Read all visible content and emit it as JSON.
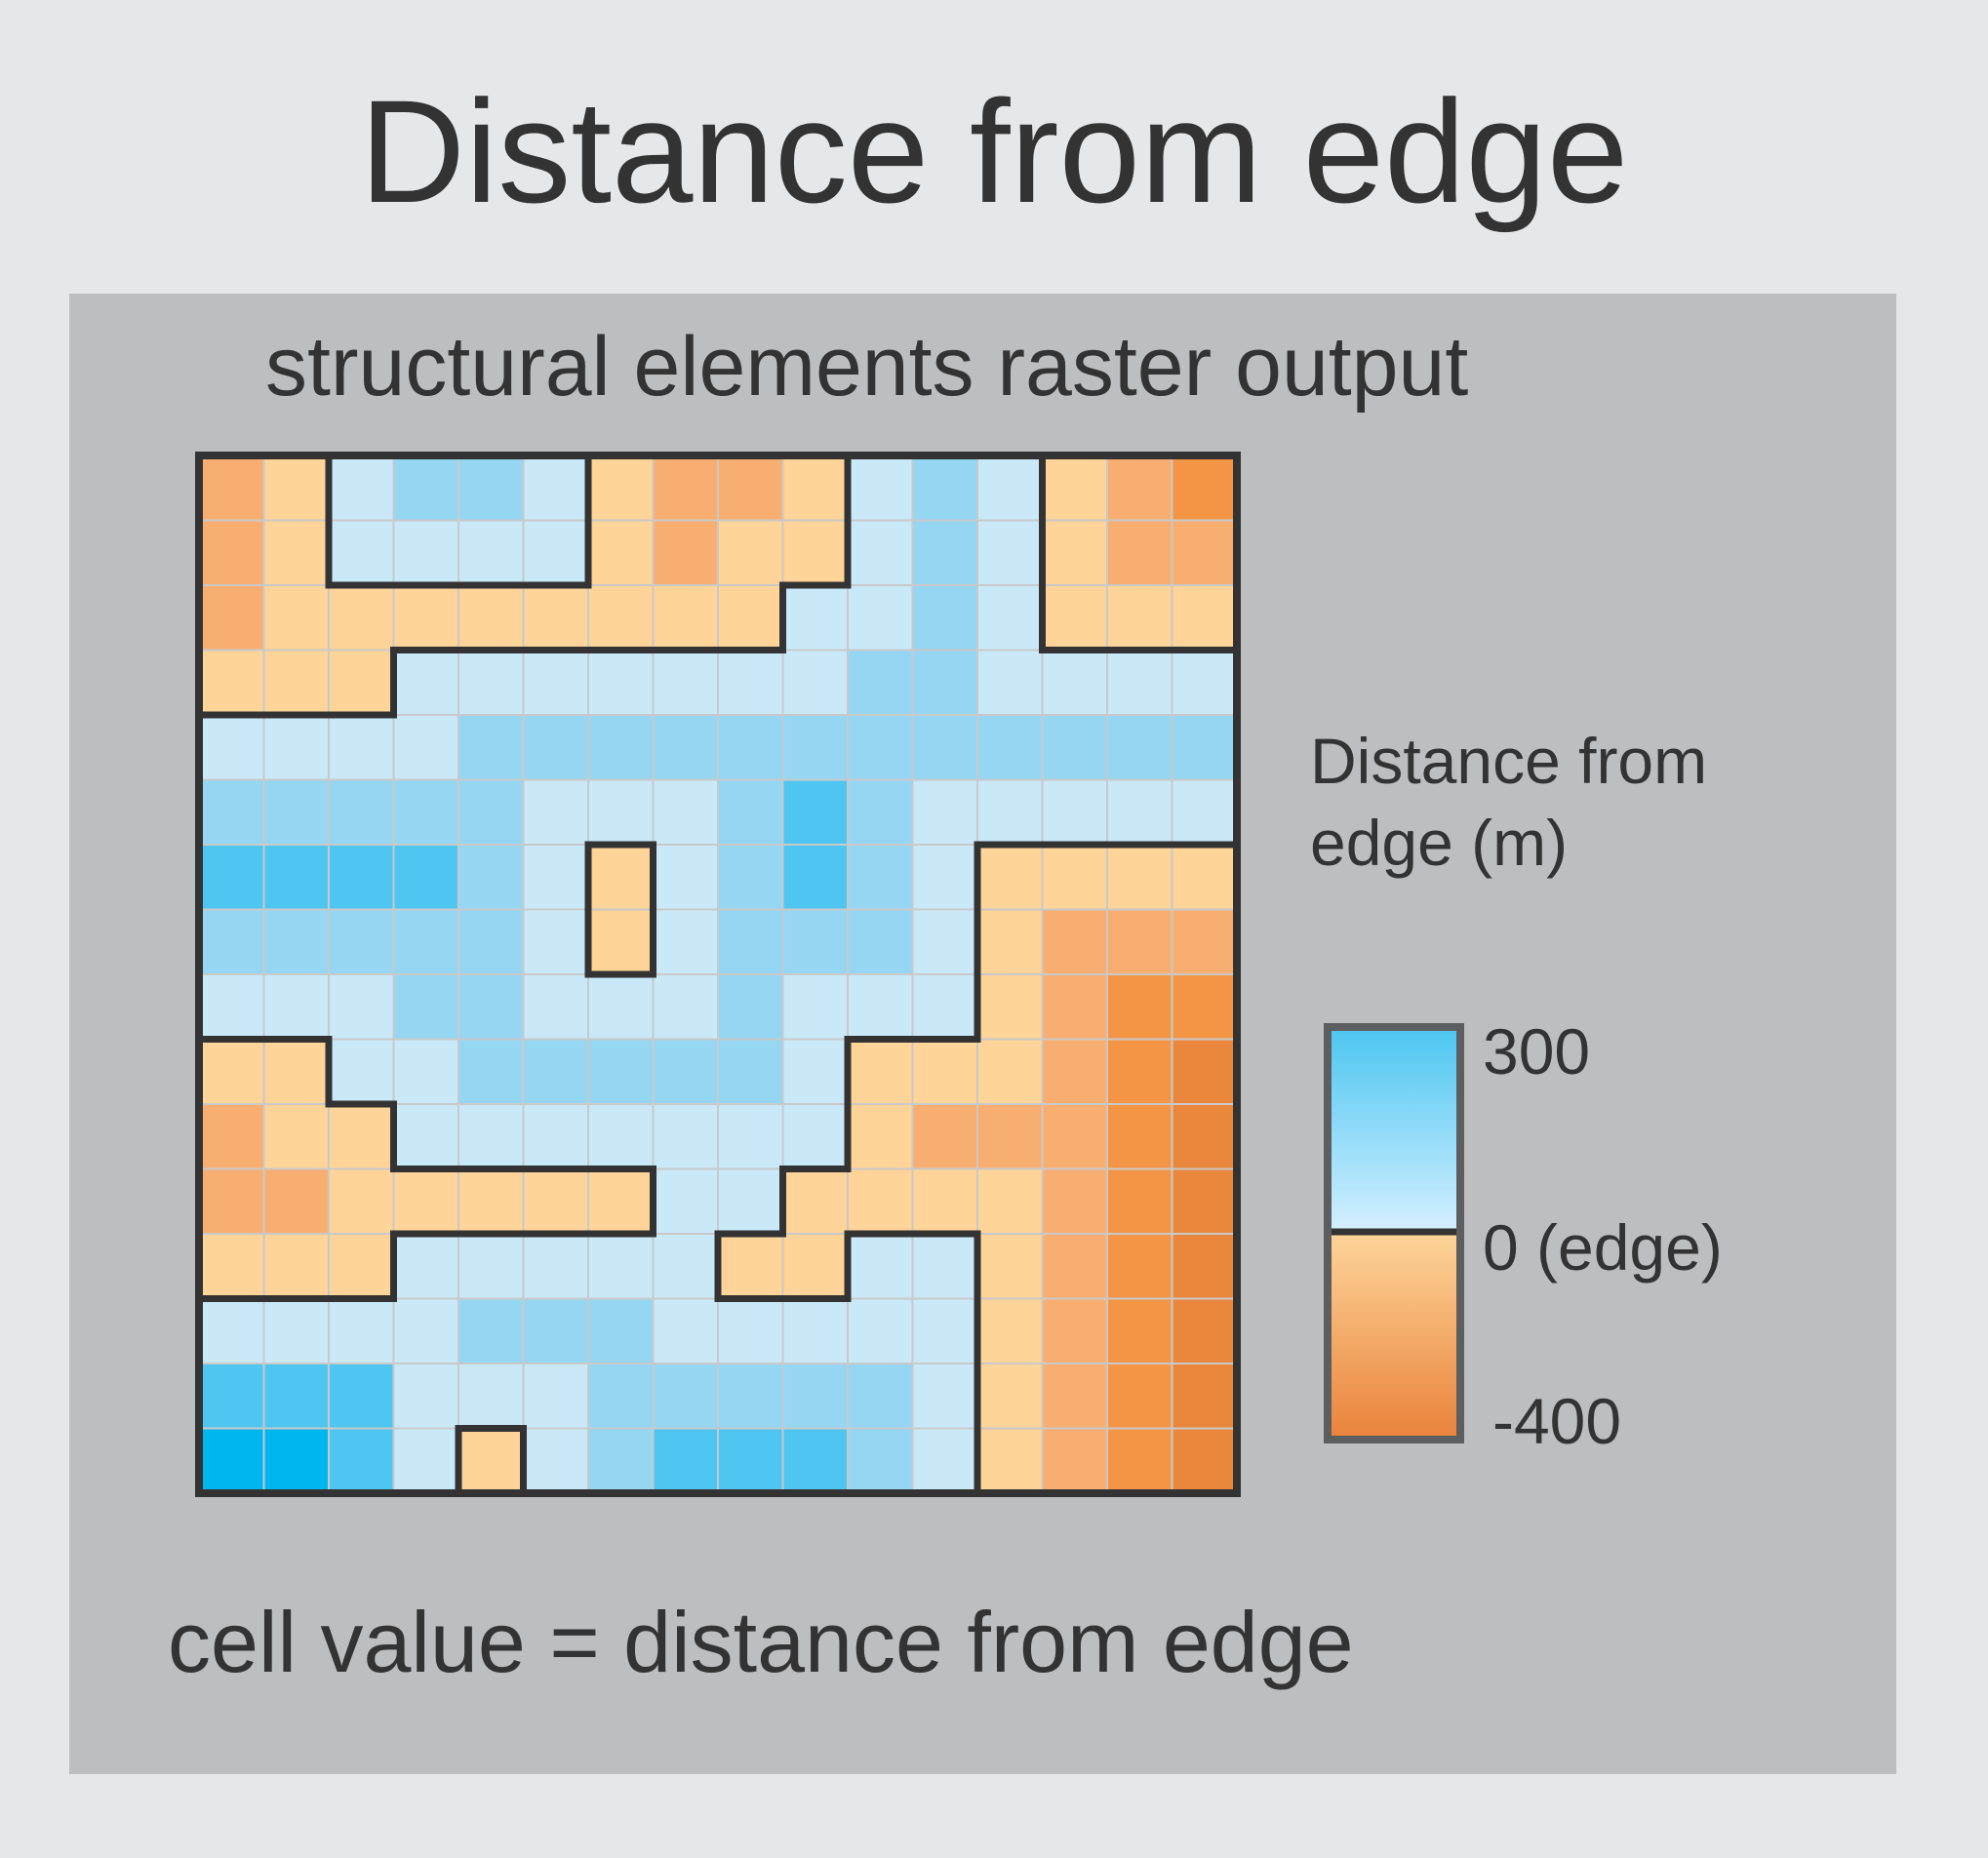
{
  "title": "Distance from edge",
  "subtitle": "structural elements raster output",
  "legend": {
    "title_line1": "Distance from",
    "title_line2": "edge (m)",
    "max_label": "300",
    "mid_label": "0 (edge)",
    "min_label": "-400",
    "colors": {
      "max": "#4cc6f1",
      "positive_low": "#d4efff",
      "negative_high": "#fed59a",
      "min": "#e9823a",
      "edge_line": "#333333",
      "frame": "#5d5e60"
    }
  },
  "footer": "cell value = distance from edge",
  "raster": {
    "rows": 16,
    "cols": 16,
    "cell_class_colors": {
      "P1": "#c9e9f9",
      "P2": "#95d7f3",
      "P3": "#4ec6f1",
      "P4": "#00b6ee",
      "N1": "#fed498",
      "N2": "#f8ae71",
      "N3": "#f49545",
      "N4": "#ea873d"
    },
    "grid": [
      [
        "N2",
        "N1",
        "P1",
        "P2",
        "P2",
        "P1",
        "N1",
        "N2",
        "N2",
        "N1",
        "P1",
        "P2",
        "P1",
        "N1",
        "N2",
        "N3"
      ],
      [
        "N2",
        "N1",
        "P1",
        "P1",
        "P1",
        "P1",
        "N1",
        "N2",
        "N1",
        "N1",
        "P1",
        "P2",
        "P1",
        "N1",
        "N2",
        "N2"
      ],
      [
        "N2",
        "N1",
        "N1",
        "N1",
        "N1",
        "N1",
        "N1",
        "N1",
        "N1",
        "P1",
        "P1",
        "P2",
        "P1",
        "N1",
        "N1",
        "N1"
      ],
      [
        "N1",
        "N1",
        "N1",
        "P1",
        "P1",
        "P1",
        "P1",
        "P1",
        "P1",
        "P1",
        "P2",
        "P2",
        "P1",
        "P1",
        "P1",
        "P1"
      ],
      [
        "P1",
        "P1",
        "P1",
        "P1",
        "P2",
        "P2",
        "P2",
        "P2",
        "P2",
        "P2",
        "P2",
        "P2",
        "P2",
        "P2",
        "P2",
        "P2"
      ],
      [
        "P2",
        "P2",
        "P2",
        "P2",
        "P2",
        "P1",
        "P1",
        "P1",
        "P2",
        "P3",
        "P2",
        "P1",
        "P1",
        "P1",
        "P1",
        "P1"
      ],
      [
        "P3",
        "P3",
        "P3",
        "P3",
        "P2",
        "P1",
        "N1",
        "P1",
        "P2",
        "P3",
        "P2",
        "P1",
        "N1",
        "N1",
        "N1",
        "N1"
      ],
      [
        "P2",
        "P2",
        "P2",
        "P2",
        "P2",
        "P1",
        "N1",
        "P1",
        "P2",
        "P2",
        "P2",
        "P1",
        "N1",
        "N2",
        "N2",
        "N2"
      ],
      [
        "P1",
        "P1",
        "P1",
        "P2",
        "P2",
        "P1",
        "P1",
        "P1",
        "P2",
        "P1",
        "P1",
        "P1",
        "N1",
        "N2",
        "N3",
        "N3"
      ],
      [
        "N1",
        "N1",
        "P1",
        "P1",
        "P2",
        "P2",
        "P2",
        "P2",
        "P2",
        "P1",
        "N1",
        "N1",
        "N1",
        "N2",
        "N3",
        "N4"
      ],
      [
        "N2",
        "N1",
        "N1",
        "P1",
        "P1",
        "P1",
        "P1",
        "P1",
        "P1",
        "P1",
        "N1",
        "N2",
        "N2",
        "N2",
        "N3",
        "N4"
      ],
      [
        "N2",
        "N2",
        "N1",
        "N1",
        "N1",
        "N1",
        "N1",
        "P1",
        "P1",
        "N1",
        "N1",
        "N1",
        "N1",
        "N2",
        "N3",
        "N4"
      ],
      [
        "N1",
        "N1",
        "N1",
        "P1",
        "P1",
        "P1",
        "P1",
        "P1",
        "N1",
        "N1",
        "P1",
        "P1",
        "N1",
        "N2",
        "N3",
        "N4"
      ],
      [
        "P1",
        "P1",
        "P1",
        "P1",
        "P2",
        "P2",
        "P2",
        "P1",
        "P1",
        "P1",
        "P1",
        "P1",
        "N1",
        "N2",
        "N3",
        "N4"
      ],
      [
        "P3",
        "P3",
        "P3",
        "P1",
        "P1",
        "P1",
        "P2",
        "P2",
        "P2",
        "P2",
        "P2",
        "P1",
        "N1",
        "N2",
        "N3",
        "N4"
      ],
      [
        "P4",
        "P4",
        "P3",
        "P1",
        "N1",
        "P1",
        "P2",
        "P3",
        "P3",
        "P3",
        "P2",
        "P1",
        "N1",
        "N2",
        "N3",
        "N4"
      ]
    ]
  }
}
